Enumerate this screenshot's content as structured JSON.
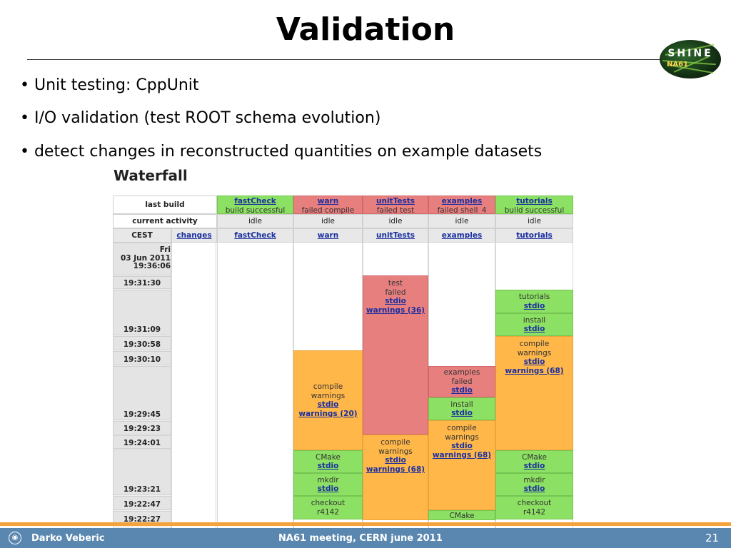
{
  "slide": {
    "title": "Validation",
    "bullets": [
      "• Unit testing: CppUnit",
      "• I/O validation (test ROOT schema evolution)",
      "• detect changes in reconstructed quantities on example datasets"
    ],
    "logo": {
      "shine": "SHINE",
      "na": "NA61"
    }
  },
  "waterfall": {
    "title": "Waterfall",
    "row_labels": {
      "last_build": "last build",
      "current_activity": "current activity",
      "timezone": "CEST",
      "changes": "changes"
    },
    "builders": [
      {
        "name": "fastCheck",
        "last_build": "build successful",
        "last_status": "success",
        "activity": "idle"
      },
      {
        "name": "warn",
        "last_build": "failed compile",
        "last_status": "failure",
        "activity": "idle"
      },
      {
        "name": "unitTests",
        "last_build": "failed test",
        "last_status": "failure",
        "activity": "idle"
      },
      {
        "name": "examples",
        "last_build": "failed shell_4",
        "last_status": "failure",
        "activity": "idle"
      },
      {
        "name": "tutorials",
        "last_build": "build successful",
        "last_status": "success",
        "activity": "idle"
      }
    ],
    "times": {
      "first_day": "Fri",
      "first_date": "03 Jun 2011",
      "t0": "19:36:06",
      "t1": "19:31:30",
      "t2": "19:31:09",
      "t3": "19:30:58",
      "t4": "19:30:10",
      "t5": "19:29:45",
      "t6": "19:29:23",
      "t7": "19:24:01",
      "t8": "19:23:21",
      "t9": "19:22:47",
      "t10": "19:22:27"
    },
    "steps": {
      "warn_compile": {
        "l1": "compile",
        "l2": "warnings",
        "link1": "stdio",
        "link2": "warnings (20)"
      },
      "warn_cmake": {
        "l1": "CMake",
        "link1": "stdio"
      },
      "warn_mkdir": {
        "l1": "mkdir",
        "link1": "stdio"
      },
      "warn_checkout": {
        "l1": "checkout",
        "l2": "r4142"
      },
      "unit_test": {
        "l1": "test",
        "l2": "failed",
        "link1": "stdio",
        "link2": "warnings (36)"
      },
      "unit_compile": {
        "l1": "compile",
        "l2": "warnings",
        "link1": "stdio",
        "link2": "warnings (68)"
      },
      "ex_examples": {
        "l1": "examples",
        "l2": "failed",
        "link1": "stdio"
      },
      "ex_install": {
        "l1": "install",
        "link1": "stdio"
      },
      "ex_compile": {
        "l1": "compile",
        "l2": "warnings",
        "link1": "stdio",
        "link2": "warnings (68)"
      },
      "ex_cmake": {
        "l1": "CMake"
      },
      "tut_tutorials": {
        "l1": "tutorials",
        "link1": "stdio"
      },
      "tut_install": {
        "l1": "install",
        "link1": "stdio"
      },
      "tut_compile": {
        "l1": "compile",
        "l2": "warnings",
        "link1": "stdio",
        "link2": "warnings (68)"
      },
      "tut_cmake": {
        "l1": "CMake",
        "link1": "stdio"
      },
      "tut_mkdir": {
        "l1": "mkdir",
        "link1": "stdio"
      },
      "tut_checkout": {
        "l1": "checkout",
        "l2": "r4142"
      }
    },
    "colors": {
      "success": "#8ce063",
      "failure": "#e87f7f",
      "warnings": "#ffb74a"
    }
  },
  "footer": {
    "author": "Darko Veberic",
    "meeting": "NA61 meeting, CERN june 2011",
    "page": "21",
    "icon": "institute-seal-icon"
  }
}
